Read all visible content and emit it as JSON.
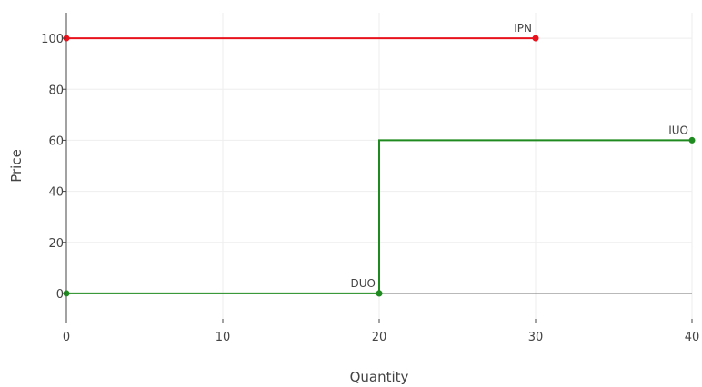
{
  "chart_data": {
    "type": "line",
    "xlabel": "Quantity",
    "ylabel": "Price",
    "xlim": [
      0,
      40
    ],
    "ylim": [
      -10,
      110
    ],
    "xticks": [
      0,
      10,
      20,
      30,
      40
    ],
    "yticks": [
      0,
      20,
      40,
      60,
      80,
      100
    ],
    "grid": true,
    "series": [
      {
        "name": "IPN",
        "color": "#e8121d",
        "points": [
          [
            0,
            100
          ],
          [
            30,
            100
          ]
        ],
        "label": "IPN",
        "label_at": [
          30,
          100
        ]
      },
      {
        "name": "DUO",
        "color": "#1f8a1f",
        "points": [
          [
            0,
            0
          ],
          [
            20,
            0
          ]
        ],
        "label": "DUO",
        "label_at": [
          20,
          0
        ]
      },
      {
        "name": "IUO",
        "color": "#1f8a1f",
        "points": [
          [
            20,
            0
          ],
          [
            20,
            60
          ],
          [
            40,
            60
          ]
        ],
        "label": "IUO",
        "label_at": [
          40,
          60
        ]
      }
    ]
  }
}
